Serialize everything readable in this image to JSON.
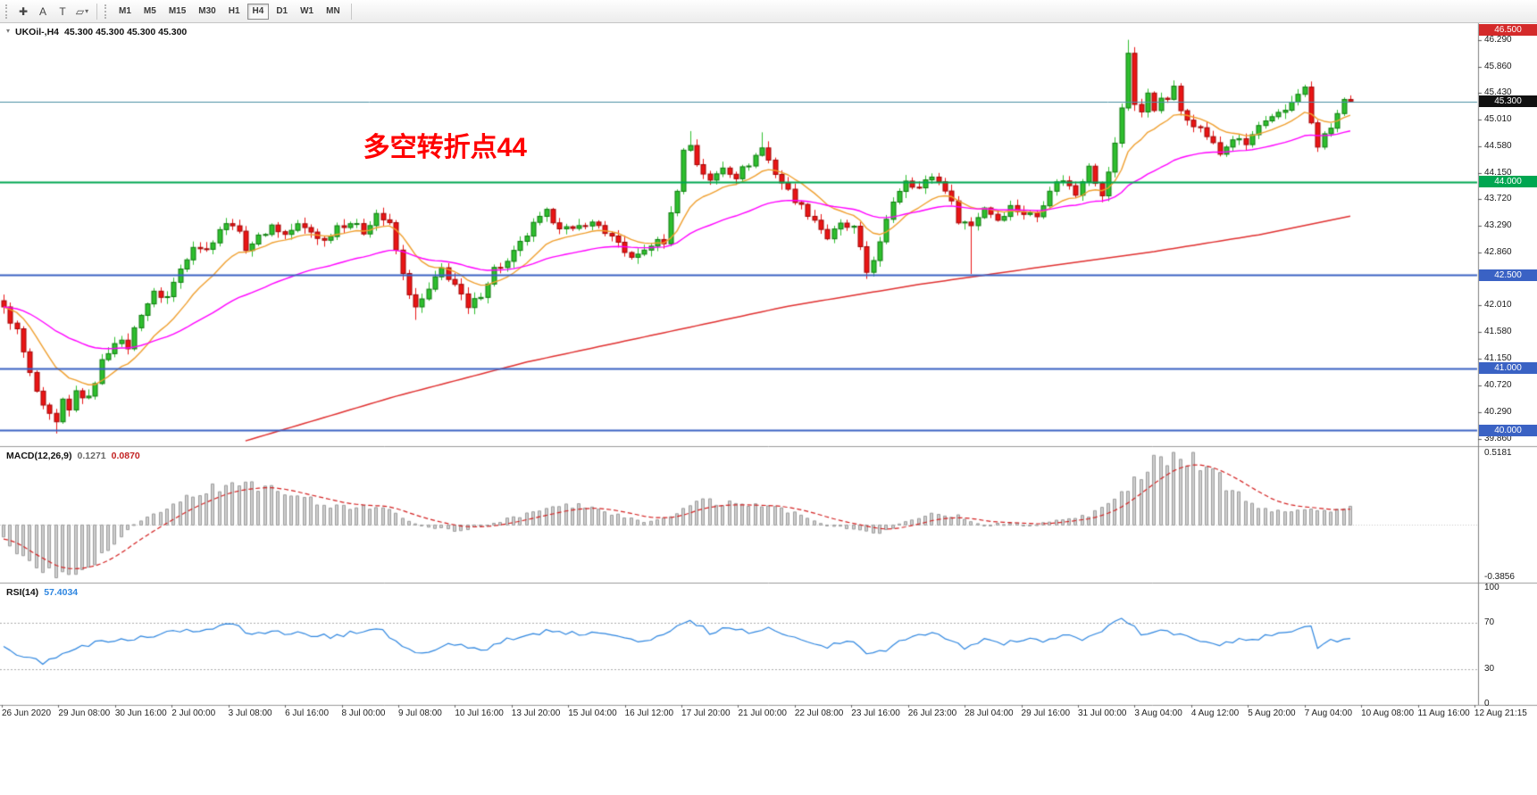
{
  "toolbar": {
    "tools": [
      {
        "name": "chart-cursor-icon",
        "glyph": "✚"
      },
      {
        "name": "text-label-icon",
        "glyph": "A"
      },
      {
        "name": "text-frame-icon",
        "glyph": "T"
      },
      {
        "name": "shapes-icon",
        "glyph": "▱",
        "dropdown": "▾"
      }
    ],
    "timeframes": [
      {
        "label": "M1"
      },
      {
        "label": "M5"
      },
      {
        "label": "M15"
      },
      {
        "label": "M30"
      },
      {
        "label": "H1"
      },
      {
        "label": "H4",
        "active": true
      },
      {
        "label": "D1"
      },
      {
        "label": "W1"
      },
      {
        "label": "MN"
      }
    ]
  },
  "chart": {
    "symbol_label": "UKOil-,H4",
    "ohlc": "45.300 45.300 45.300 45.300"
  },
  "macd_panel": {
    "label": "MACD(12,26,9)",
    "value_main": "0.1271",
    "value_signal": "0.0870",
    "axis_max": "0.5181",
    "axis_min": "-0.3856"
  },
  "rsi_panel": {
    "label": "RSI(14)",
    "value": "57.4034"
  },
  "chart_data": [
    {
      "type": "candlestick",
      "symbol": "UKOil-",
      "timeframe": "H4",
      "count": 207,
      "ylim": [
        39.79,
        46.5
      ],
      "y_ticks": [
        "46.290",
        "45.860",
        "45.430",
        "45.010",
        "44.580",
        "44.150",
        "43.720",
        "43.290",
        "42.860",
        "42.010",
        "41.580",
        "41.150",
        "40.720",
        "40.290",
        "39.860"
      ],
      "x_labels": [
        "26 Jun 2020",
        "29 Jun 08:00",
        "30 Jun 16:00",
        "2 Jul 00:00",
        "3 Jul 08:00",
        "6 Jul 16:00",
        "8 Jul 00:00",
        "9 Jul 08:00",
        "10 Jul 16:00",
        "13 Jul 20:00",
        "15 Jul 04:00",
        "16 Jul 12:00",
        "17 Jul 20:00",
        "21 Jul 00:00",
        "22 Jul 08:00",
        "23 Jul 16:00",
        "26 Jul 23:00",
        "28 Jul 04:00",
        "29 Jul 16:00",
        "31 Jul 00:00",
        "3 Aug 04:00",
        "4 Aug 12:00",
        "5 Aug 20:00",
        "7 Aug 04:00",
        "10 Aug 08:00",
        "11 Aug 16:00",
        "12 Aug 21:15"
      ],
      "close_anchors": [
        [
          0,
          41.95
        ],
        [
          2,
          41.6
        ],
        [
          4,
          40.9
        ],
        [
          6,
          40.35
        ],
        [
          8,
          40.1
        ],
        [
          9,
          40.45
        ],
        [
          10,
          40.3
        ],
        [
          11,
          40.62
        ],
        [
          13,
          40.5
        ],
        [
          15,
          41.1
        ],
        [
          17,
          41.45
        ],
        [
          19,
          41.35
        ],
        [
          21,
          41.9
        ],
        [
          23,
          42.2
        ],
        [
          25,
          42.15
        ],
        [
          27,
          42.6
        ],
        [
          29,
          43.0
        ],
        [
          31,
          42.9
        ],
        [
          33,
          43.25
        ],
        [
          35,
          43.35
        ],
        [
          37,
          42.95
        ],
        [
          39,
          43.1
        ],
        [
          41,
          43.3
        ],
        [
          43,
          43.15
        ],
        [
          45,
          43.3
        ],
        [
          47,
          43.2
        ],
        [
          49,
          43.05
        ],
        [
          51,
          43.3
        ],
        [
          53,
          43.35
        ],
        [
          55,
          43.2
        ],
        [
          57,
          43.5
        ],
        [
          59,
          43.3
        ],
        [
          61,
          42.5
        ],
        [
          63,
          41.95
        ],
        [
          65,
          42.25
        ],
        [
          67,
          42.6
        ],
        [
          69,
          42.35
        ],
        [
          71,
          41.95
        ],
        [
          73,
          42.2
        ],
        [
          75,
          42.6
        ],
        [
          77,
          42.7
        ],
        [
          79,
          43.0
        ],
        [
          81,
          43.3
        ],
        [
          83,
          43.5
        ],
        [
          85,
          43.3
        ],
        [
          87,
          43.2
        ],
        [
          89,
          43.35
        ],
        [
          91,
          43.3
        ],
        [
          93,
          43.1
        ],
        [
          95,
          42.85
        ],
        [
          97,
          42.8
        ],
        [
          99,
          43.0
        ],
        [
          101,
          43.05
        ],
        [
          103,
          43.9
        ],
        [
          104,
          44.5
        ],
        [
          105,
          44.6
        ],
        [
          106,
          44.3
        ],
        [
          108,
          44.0
        ],
        [
          110,
          44.25
        ],
        [
          112,
          44.1
        ],
        [
          114,
          44.3
        ],
        [
          116,
          44.55
        ],
        [
          118,
          44.15
        ],
        [
          120,
          43.85
        ],
        [
          122,
          43.6
        ],
        [
          124,
          43.4
        ],
        [
          126,
          43.1
        ],
        [
          128,
          43.3
        ],
        [
          130,
          43.25
        ],
        [
          132,
          42.55
        ],
        [
          134,
          43.0
        ],
        [
          136,
          43.7
        ],
        [
          138,
          44.05
        ],
        [
          140,
          43.9
        ],
        [
          142,
          44.1
        ],
        [
          144,
          43.9
        ],
        [
          146,
          43.4
        ],
        [
          148,
          43.3
        ],
        [
          150,
          43.6
        ],
        [
          152,
          43.4
        ],
        [
          154,
          43.6
        ],
        [
          156,
          43.5
        ],
        [
          158,
          43.45
        ],
        [
          160,
          43.9
        ],
        [
          162,
          44.05
        ],
        [
          164,
          43.8
        ],
        [
          166,
          44.3
        ],
        [
          168,
          43.75
        ],
        [
          170,
          44.6
        ],
        [
          171,
          45.2
        ],
        [
          172,
          46.1
        ],
        [
          173,
          45.25
        ],
        [
          174,
          45.1
        ],
        [
          175,
          45.45
        ],
        [
          176,
          45.2
        ],
        [
          177,
          45.3
        ],
        [
          178,
          45.35
        ],
        [
          179,
          45.5
        ],
        [
          180,
          45.15
        ],
        [
          182,
          44.95
        ],
        [
          184,
          44.75
        ],
        [
          186,
          44.45
        ],
        [
          188,
          44.7
        ],
        [
          190,
          44.6
        ],
        [
          192,
          44.9
        ],
        [
          194,
          45.0
        ],
        [
          196,
          45.15
        ],
        [
          198,
          45.45
        ],
        [
          199,
          45.5
        ],
        [
          200,
          44.95
        ],
        [
          201,
          44.55
        ],
        [
          202,
          44.75
        ],
        [
          204,
          45.05
        ],
        [
          205,
          45.35
        ],
        [
          206,
          45.3
        ]
      ],
      "extreme_overrides": [
        {
          "i": 8,
          "low": 39.95
        },
        {
          "i": 63,
          "low": 41.78
        },
        {
          "i": 105,
          "high": 44.82
        },
        {
          "i": 116,
          "high": 44.8
        },
        {
          "i": 132,
          "low": 42.44
        },
        {
          "i": 148,
          "low": 42.52
        },
        {
          "i": 172,
          "high": 46.29
        }
      ],
      "hlines": [
        {
          "price": 45.3,
          "label": "45.300",
          "line_color": "#4a90a4",
          "badge_bg": "#111111",
          "width": 1
        },
        {
          "price": 44.0,
          "label": "44.000",
          "line_color": "#00a651",
          "badge_bg": "#00a651",
          "width": 2
        },
        {
          "price": 42.5,
          "label": "42.500",
          "line_color": "#3a62c4",
          "badge_bg": "#3a62c4",
          "width": 2
        },
        {
          "price": 41.0,
          "label": "41.000",
          "line_color": "#3a62c4",
          "badge_bg": "#3a62c4",
          "width": 2
        },
        {
          "price": 40.0,
          "label": "40.000",
          "line_color": "#3a62c4",
          "badge_bg": "#3a62c4",
          "width": 2
        }
      ],
      "top_badge": {
        "label": "46.500",
        "badge_bg": "#d42a2a"
      },
      "annotation": {
        "text": "多空转折点44",
        "index": 55,
        "price": 44.92,
        "color": "#ff0000",
        "size": 30
      },
      "moving_averages": [
        {
          "name": "ma-fast",
          "type": "ema",
          "period": 12,
          "color": "#f0a030"
        },
        {
          "name": "ma-mid",
          "type": "ema",
          "period": 40,
          "color": "#ff00ff"
        },
        {
          "name": "ma-long",
          "type": "anchors",
          "color": "#e03030",
          "anchors": [
            [
              36,
              39.8
            ],
            [
              60,
              40.55
            ],
            [
              80,
              41.1
            ],
            [
              100,
              41.55
            ],
            [
              120,
              42.0
            ],
            [
              140,
              42.35
            ],
            [
              160,
              42.65
            ],
            [
              176,
              42.88
            ],
            [
              192,
              43.15
            ],
            [
              206,
              43.45
            ]
          ]
        }
      ],
      "up_color": "#2fbf2f",
      "down_color": "#ea1515",
      "up_border": "#0e7a0e",
      "down_border": "#a00707"
    },
    {
      "type": "bar",
      "name": "MACD(12,26,9)",
      "params": {
        "fast": 12,
        "slow": 26,
        "signal": 9
      },
      "current_macd": 0.1271,
      "current_signal": 0.087,
      "ylim": [
        -0.3856,
        0.5181
      ],
      "histogram_color": "#cfcfcf",
      "histogram_border": "#9c9c9c",
      "signal_color": "#d42222",
      "macd_anchors": [
        [
          0,
          -0.1
        ],
        [
          4,
          -0.3
        ],
        [
          8,
          -0.386
        ],
        [
          14,
          -0.25
        ],
        [
          20,
          0.0
        ],
        [
          28,
          0.2
        ],
        [
          34,
          0.29
        ],
        [
          40,
          0.28
        ],
        [
          46,
          0.18
        ],
        [
          52,
          0.12
        ],
        [
          58,
          0.13
        ],
        [
          62,
          0.02
        ],
        [
          66,
          -0.02
        ],
        [
          70,
          -0.04
        ],
        [
          74,
          0.0
        ],
        [
          80,
          0.08
        ],
        [
          86,
          0.14
        ],
        [
          90,
          0.13
        ],
        [
          94,
          0.07
        ],
        [
          98,
          0.02
        ],
        [
          102,
          0.06
        ],
        [
          106,
          0.17
        ],
        [
          110,
          0.16
        ],
        [
          114,
          0.14
        ],
        [
          118,
          0.13
        ],
        [
          122,
          0.07
        ],
        [
          126,
          0.0
        ],
        [
          130,
          -0.03
        ],
        [
          134,
          -0.06
        ],
        [
          138,
          0.02
        ],
        [
          142,
          0.08
        ],
        [
          146,
          0.06
        ],
        [
          150,
          0.0
        ],
        [
          154,
          0.01
        ],
        [
          158,
          0.0
        ],
        [
          162,
          0.04
        ],
        [
          166,
          0.07
        ],
        [
          170,
          0.18
        ],
        [
          173,
          0.32
        ],
        [
          176,
          0.44
        ],
        [
          179,
          0.5
        ],
        [
          182,
          0.46
        ],
        [
          185,
          0.36
        ],
        [
          188,
          0.25
        ],
        [
          191,
          0.15
        ],
        [
          194,
          0.09
        ],
        [
          197,
          0.1
        ],
        [
          200,
          0.11
        ],
        [
          203,
          0.09
        ],
        [
          206,
          0.127
        ]
      ]
    },
    {
      "type": "line",
      "name": "RSI(14)",
      "period": 14,
      "current": 57.4034,
      "ylim": [
        0,
        100
      ],
      "levels": [
        70,
        30
      ],
      "y_ticks": [
        "100",
        "70",
        "30",
        "0"
      ],
      "line_color": "#2e86e0",
      "rsi_anchors": [
        [
          0,
          48
        ],
        [
          3,
          40
        ],
        [
          6,
          36
        ],
        [
          9,
          44
        ],
        [
          12,
          50
        ],
        [
          16,
          55
        ],
        [
          20,
          57
        ],
        [
          24,
          60
        ],
        [
          28,
          63
        ],
        [
          32,
          66
        ],
        [
          35,
          70
        ],
        [
          38,
          59
        ],
        [
          42,
          62
        ],
        [
          46,
          60
        ],
        [
          50,
          58
        ],
        [
          54,
          62
        ],
        [
          58,
          64
        ],
        [
          61,
          48
        ],
        [
          64,
          42
        ],
        [
          67,
          50
        ],
        [
          70,
          52
        ],
        [
          73,
          45
        ],
        [
          76,
          54
        ],
        [
          80,
          59
        ],
        [
          84,
          64
        ],
        [
          88,
          60
        ],
        [
          91,
          63
        ],
        [
          94,
          57
        ],
        [
          97,
          53
        ],
        [
          100,
          58
        ],
        [
          103,
          66
        ],
        [
          105,
          72
        ],
        [
          108,
          62
        ],
        [
          111,
          65
        ],
        [
          114,
          62
        ],
        [
          117,
          67
        ],
        [
          120,
          59
        ],
        [
          123,
          55
        ],
        [
          126,
          50
        ],
        [
          129,
          56
        ],
        [
          132,
          45
        ],
        [
          135,
          47
        ],
        [
          138,
          57
        ],
        [
          141,
          61
        ],
        [
          144,
          57
        ],
        [
          147,
          49
        ],
        [
          150,
          56
        ],
        [
          153,
          52
        ],
        [
          156,
          56
        ],
        [
          159,
          53
        ],
        [
          162,
          59
        ],
        [
          165,
          56
        ],
        [
          168,
          62
        ],
        [
          171,
          74
        ],
        [
          174,
          61
        ],
        [
          177,
          63
        ],
        [
          180,
          59
        ],
        [
          183,
          55
        ],
        [
          186,
          50
        ],
        [
          189,
          55
        ],
        [
          192,
          57
        ],
        [
          195,
          60
        ],
        [
          198,
          66
        ],
        [
          200,
          68
        ],
        [
          201,
          48
        ],
        [
          203,
          54
        ],
        [
          205,
          57
        ],
        [
          206,
          57.4
        ]
      ]
    }
  ]
}
